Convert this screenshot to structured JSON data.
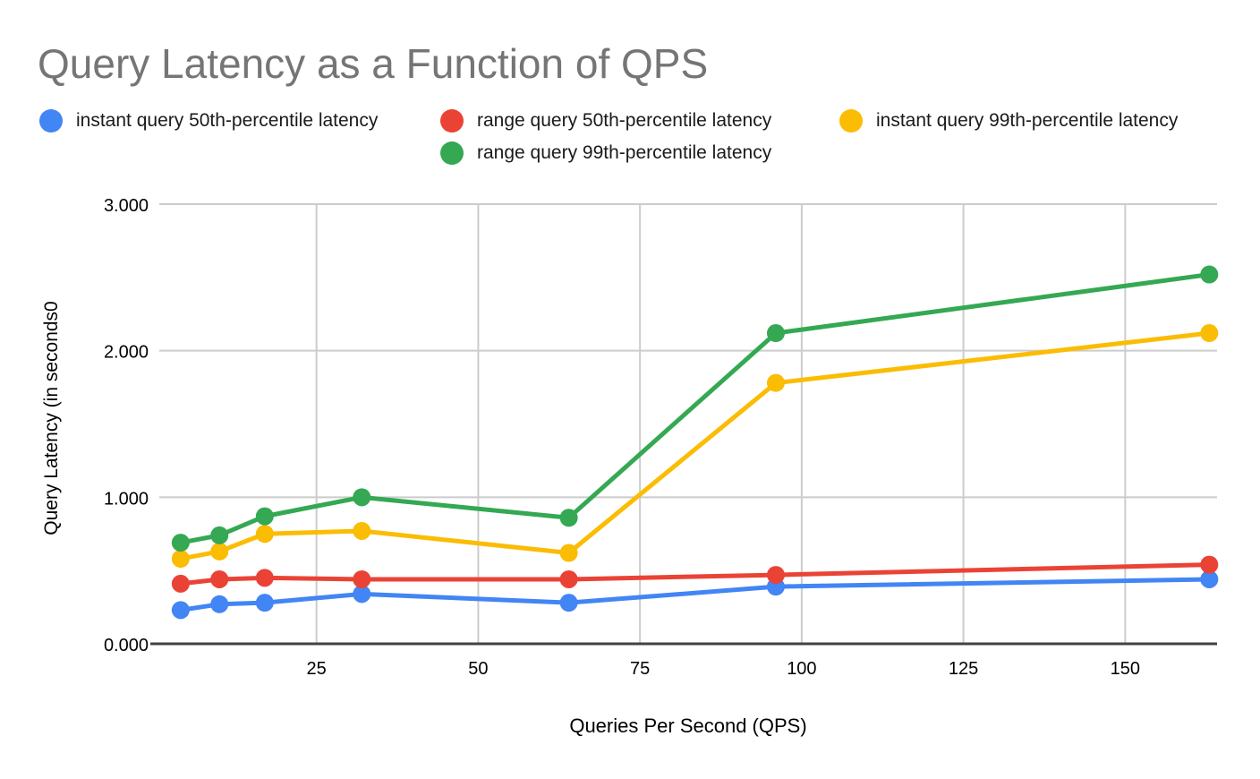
{
  "title": "Query Latency as a Function of QPS",
  "legend": {
    "items": [
      {
        "label": "instant query 50th-percentile latency",
        "color": "#4285F4"
      },
      {
        "label": "range query 50th-percentile latency",
        "color": "#EA4335"
      },
      {
        "label": "instant query 99th-percentile latency",
        "color": "#FBBC04"
      },
      {
        "label": "range query 99th-percentile latency",
        "color": "#34A853"
      }
    ]
  },
  "chart_data": {
    "type": "line",
    "title": "Query Latency as a Function of QPS",
    "xlabel": "Queries Per Second (QPS)",
    "ylabel": "Query Latency (in seconds0",
    "x": [
      4,
      10,
      17,
      32,
      64,
      96,
      163
    ],
    "series": [
      {
        "name": "instant query 50th-percentile latency",
        "color": "#4285F4",
        "values": [
          0.23,
          0.27,
          0.28,
          0.34,
          0.28,
          0.39,
          0.44
        ]
      },
      {
        "name": "range query 50th-percentile latency",
        "color": "#EA4335",
        "values": [
          0.41,
          0.44,
          0.45,
          0.44,
          0.44,
          0.47,
          0.54
        ]
      },
      {
        "name": "instant query 99th-percentile latency",
        "color": "#FBBC04",
        "values": [
          0.58,
          0.63,
          0.75,
          0.77,
          0.62,
          1.78,
          2.12
        ]
      },
      {
        "name": "range query 99th-percentile latency",
        "color": "#34A853",
        "values": [
          0.69,
          0.74,
          0.87,
          1.0,
          0.86,
          2.12,
          2.52
        ]
      }
    ],
    "x_ticks": [
      25,
      50,
      75,
      100,
      125,
      150
    ],
    "y_ticks": [
      "0.000",
      "1.000",
      "2.000",
      "3.000"
    ],
    "xlim": [
      0.7,
      164.2
    ],
    "ylim": [
      0,
      3
    ],
    "grid": true,
    "legend_position": "top"
  },
  "colors": {
    "title_gray": "#757575",
    "axis_text": "#000000",
    "gridline": "#cccccc",
    "axis_line": "#424242",
    "background": "#ffffff"
  }
}
